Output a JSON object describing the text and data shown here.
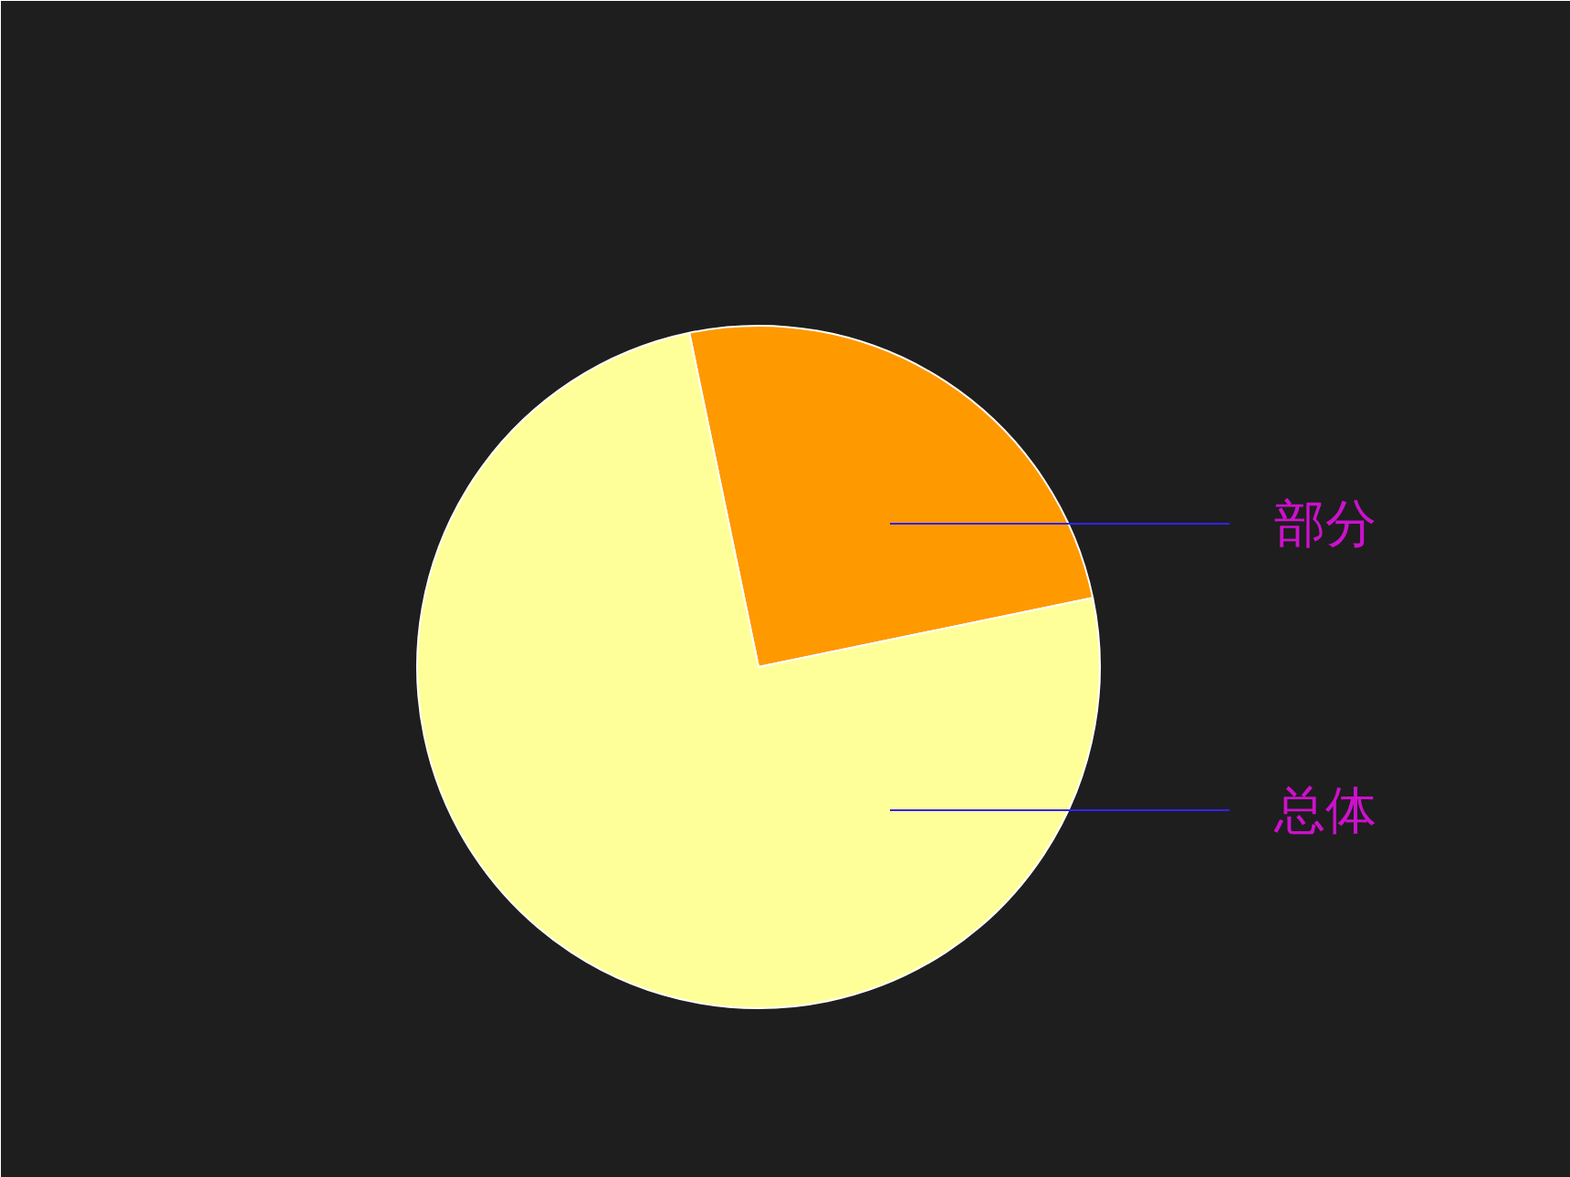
{
  "chart_data": {
    "type": "pie",
    "categories": [
      "部分",
      "总体"
    ],
    "values": [
      25,
      75
    ],
    "colors": [
      "#ff9900",
      "#ffff99"
    ]
  }
}
